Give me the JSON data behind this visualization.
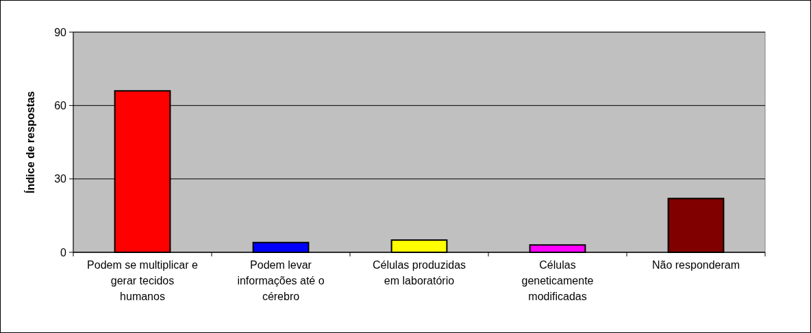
{
  "chart_data": {
    "type": "bar",
    "ylabel": "Índice de respostas",
    "categories": [
      "Podem se multiplicar e gerar tecidos humanos",
      "Podem levar informações até o cérebro",
      "Células produzidas em laboratório",
      "Células geneticamente modificadas",
      "Não responderam"
    ],
    "values": [
      66,
      4,
      5,
      3,
      22
    ],
    "colors": [
      "#ff0000",
      "#0000ff",
      "#ffff00",
      "#ff00ff",
      "#800000"
    ],
    "ylim": [
      0,
      90
    ],
    "yticks": [
      0,
      30,
      60,
      90
    ],
    "grid": "y"
  }
}
